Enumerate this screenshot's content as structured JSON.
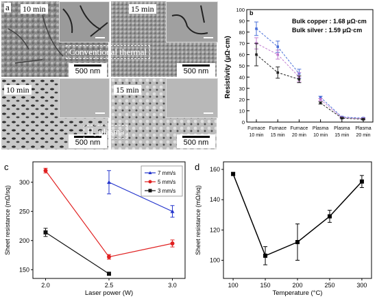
{
  "panel_a": {
    "letter": "a",
    "tiles": [
      {
        "label": "10 min",
        "scale": "500 nm"
      },
      {
        "label": "15 min",
        "scale": "500 nm"
      },
      {
        "label": "10 min",
        "scale": "500 nm"
      },
      {
        "label": "15 min",
        "scale": "500 nm"
      }
    ],
    "caption_top": "Conventional thermal",
    "caption_bottom": "H₂ plasma"
  },
  "chart_b": {
    "letter": "b",
    "note1": "Bulk copper : 1.68 μΩ·cm",
    "note2": "Bulk silver  : 1.59 μΩ·cm",
    "ylabel": "Resistivity (μΩ·cm)",
    "yticks": [
      "0",
      "10",
      "20",
      "30",
      "40",
      "50",
      "60",
      "70",
      "80",
      "90",
      "100"
    ],
    "categories": [
      [
        "Furnace",
        "10 min"
      ],
      [
        "Furnace",
        "15 min"
      ],
      [
        "Furnace",
        "20 min"
      ],
      [
        "Plasma",
        "10 min"
      ],
      [
        "Plasma",
        "15 min"
      ],
      [
        "Plasma",
        "20 min"
      ]
    ]
  },
  "chart_c": {
    "letter": "c",
    "xlabel": "Laser power (W)",
    "ylabel": "Sheet resistance (mΩ/sq)",
    "xticks": [
      "2.0",
      "2.5",
      "3.0"
    ],
    "yticks": [
      "150",
      "200",
      "250",
      "300"
    ],
    "legend": [
      "7 mm/s",
      "5 mm/s",
      "3 mm/s"
    ]
  },
  "chart_d": {
    "letter": "d",
    "xlabel": "Temperature (°C)",
    "ylabel": "Sheet resistance (mΩ/sq)",
    "xticks": [
      "100",
      "150",
      "200",
      "250",
      "300"
    ],
    "yticks": [
      "100",
      "120",
      "140",
      "160"
    ]
  },
  "chart_data": [
    {
      "type": "line",
      "ylim": [
        0,
        100
      ],
      "categories": [
        "Furnace 10 min",
        "Furnace 15 min",
        "Furnace 20 min",
        "Plasma 10 min",
        "Plasma 15 min",
        "Plasma 20 min"
      ],
      "series": [
        {
          "color": "#4a6fd8",
          "values": [
            83,
            67,
            43,
            22,
            4.5,
            3.5
          ],
          "err": [
            6,
            5,
            4,
            1,
            0.5,
            0.5
          ]
        },
        {
          "color": "#c07ad0",
          "values": [
            70,
            60,
            40,
            20,
            4,
            3
          ],
          "err": [
            5,
            4,
            4,
            1,
            0.5,
            0.5
          ]
        },
        {
          "color": "#222222",
          "values": [
            60,
            44,
            38,
            17,
            3.5,
            2.5
          ],
          "err": [
            10,
            5,
            3,
            1,
            0.5,
            0.5
          ]
        }
      ]
    },
    {
      "type": "line",
      "xlabel": "Laser power (W)",
      "ylabel": "Sheet resistance (mΩ/sq)",
      "x": [
        2.0,
        2.5,
        3.0
      ],
      "xlim": [
        1.9,
        3.1
      ],
      "ylim": [
        135,
        335
      ],
      "series": [
        {
          "name": "7 mm/s",
          "color": "#2233cc",
          "marker": "triangle",
          "x": [
            2.5,
            3.0
          ],
          "values": [
            300,
            250
          ],
          "err": [
            20,
            10
          ]
        },
        {
          "name": "5 mm/s",
          "color": "#e02020",
          "marker": "circle",
          "x": [
            2.0,
            2.5,
            3.0
          ],
          "values": [
            320,
            172,
            195
          ],
          "err": [
            4,
            4,
            6
          ]
        },
        {
          "name": "3 mm/s",
          "color": "#111111",
          "marker": "square",
          "x": [
            2.0,
            2.5
          ],
          "values": [
            214,
            143
          ],
          "err": [
            7,
            2
          ]
        }
      ]
    },
    {
      "type": "line",
      "xlabel": "Temperature (°C)",
      "ylabel": "Sheet resistance (mΩ/sq)",
      "xlim": [
        85,
        315
      ],
      "ylim": [
        88,
        165
      ],
      "series": [
        {
          "color": "#000000",
          "marker": "square",
          "x": [
            100,
            150,
            200,
            250,
            300
          ],
          "values": [
            157,
            103,
            112,
            129,
            152
          ],
          "err": [
            1,
            6,
            12,
            4,
            4
          ]
        }
      ]
    }
  ]
}
